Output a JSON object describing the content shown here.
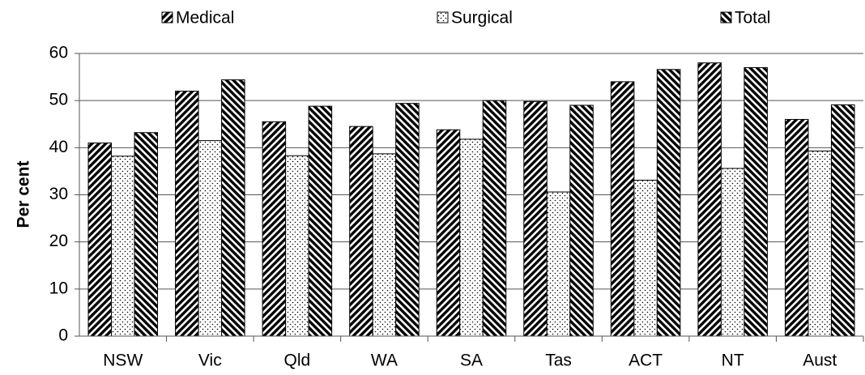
{
  "chart_data": {
    "type": "bar",
    "y_label": "Per cent",
    "categories": [
      "NSW",
      "Vic",
      "Qld",
      "WA",
      "SA",
      "Tas",
      "ACT",
      "NT",
      "Aust"
    ],
    "series": [
      {
        "name": "Medical",
        "color": "#000000",
        "values": [
          41,
          52,
          45.5,
          44.5,
          43.8,
          49.8,
          54,
          58,
          46
        ]
      },
      {
        "name": "Surgical",
        "color": "#000000",
        "values": [
          38.2,
          41.5,
          38.3,
          38.7,
          41.8,
          30.6,
          33.1,
          35.6,
          39.3
        ]
      },
      {
        "name": "Total",
        "color": "#000000",
        "values": [
          43.2,
          54.4,
          48.8,
          49.4,
          50,
          49,
          56.6,
          57,
          49.1
        ]
      }
    ],
    "ylim": [
      0,
      60
    ],
    "yticks": [
      0,
      10,
      20,
      30,
      40,
      50,
      60
    ],
    "grid": true,
    "legend": "top"
  }
}
